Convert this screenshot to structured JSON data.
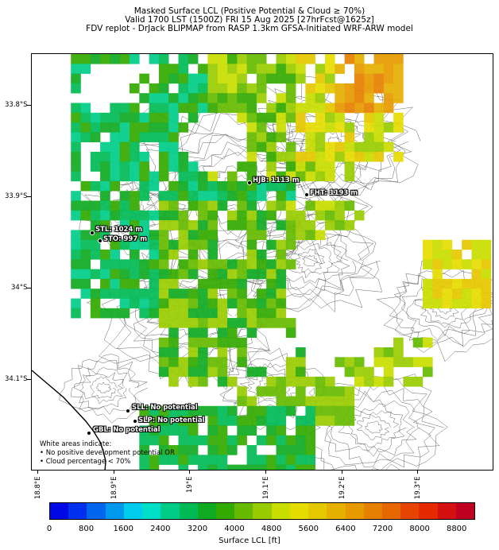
{
  "header": {
    "line1": "Masked Surface LCL (Positive Potential & Cloud ≥ 70%)",
    "line2": "Valid 1700 LST (1500Z) FRI 15 Aug 2025 [27hrFcst@1625z]",
    "line3": "FDV replot - DrJack BLIPMAP from RASP 1.3km GFSA-Initiated WRF-ARW model"
  },
  "axes": {
    "lat_labels": [
      "33.8°S",
      "33.9°S",
      "34°S",
      "34.1°S"
    ],
    "lon_labels": [
      "18.8°E",
      "18.9°E",
      "19°E",
      "19.1°E",
      "19.2°E",
      "19.3°E"
    ]
  },
  "sites": [
    {
      "label": "HJB: 1113 m"
    },
    {
      "label": "FHT: 1193 m"
    },
    {
      "label": "STL: 1024 m"
    },
    {
      "label": "STO: 997 m"
    },
    {
      "label": "SLL: No potential"
    },
    {
      "label": "SLP: No potential"
    },
    {
      "label": "GBL: No potential"
    }
  ],
  "note": {
    "line1": "White areas indicate:",
    "line2": "• No positive development potential OR",
    "line3": "• Cloud percentage < 70%"
  },
  "colorbar": {
    "label": "Surface LCL [ft]",
    "ticks": [
      "0",
      "800",
      "1600",
      "2400",
      "3200",
      "4000",
      "4800",
      "5600",
      "6400",
      "7200",
      "8000",
      "8800"
    ],
    "colors": [
      "#0008e6",
      "#0030ee",
      "#0066ee",
      "#0099ee",
      "#00ccee",
      "#00e0c8",
      "#00cc88",
      "#00bb55",
      "#10aa22",
      "#33aa00",
      "#66bb00",
      "#99cc00",
      "#c8dd00",
      "#e6dd00",
      "#e6c800",
      "#e6b000",
      "#e69a00",
      "#e68000",
      "#e66600",
      "#e64400",
      "#e62a00",
      "#d41010",
      "#c00020"
    ]
  },
  "map_colors": {
    "background": "#ffffff",
    "contour": "#555555",
    "coast": "#000000"
  }
}
